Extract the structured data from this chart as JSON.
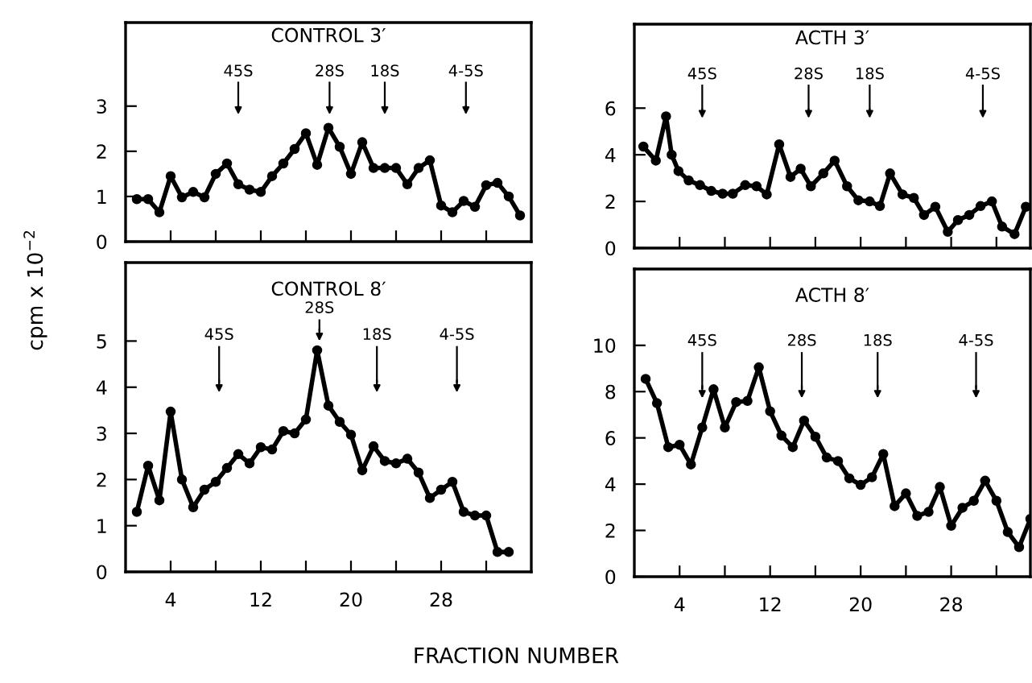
{
  "chart_data": [
    {
      "type": "line",
      "title": "CONTROL 3′",
      "ylabel": "cpm x 10$^{−2}$",
      "marker": "circle",
      "line_style": "solid",
      "tick_labels": "y",
      "xlim": [
        0,
        36
      ],
      "ylim": [
        0,
        4.85
      ],
      "xticks": [
        {
          "value": 4,
          "label": null
        },
        {
          "value": 8,
          "label": null
        },
        {
          "value": 12,
          "label": null
        },
        {
          "value": 16,
          "label": null
        },
        {
          "value": 20,
          "label": null
        },
        {
          "value": 24,
          "label": null
        },
        {
          "value": 28,
          "label": null
        },
        {
          "value": 32,
          "label": null
        }
      ],
      "yticks": [
        0,
        1,
        2,
        3
      ],
      "x": [
        1,
        2,
        3,
        4,
        5,
        6,
        7,
        8,
        9,
        10,
        11,
        12,
        13,
        14,
        15,
        16,
        17,
        18,
        19,
        20,
        21,
        22,
        23,
        24,
        25,
        26,
        27,
        28,
        29,
        30,
        31,
        32,
        33,
        34,
        35
      ],
      "series": [
        {
          "color": "#000000",
          "values": [
            0.94,
            0.94,
            0.65,
            1.45,
            0.98,
            1.1,
            0.98,
            1.5,
            1.73,
            1.27,
            1.15,
            1.1,
            1.45,
            1.73,
            2.05,
            2.4,
            1.7,
            2.52,
            2.1,
            1.5,
            2.2,
            1.63,
            1.63,
            1.63,
            1.27,
            1.63,
            1.8,
            0.8,
            0.65,
            0.9,
            0.77,
            1.25,
            1.3,
            1.0,
            0.58
          ]
        }
      ],
      "ref_lines": [
        {
          "axis": "x",
          "value": 10,
          "label": "45S"
        },
        {
          "axis": "x",
          "value": 18.1,
          "label": "28S"
        },
        {
          "axis": "x",
          "value": 23,
          "label": "18S"
        },
        {
          "axis": "x",
          "value": 30.2,
          "label": "4-5S"
        }
      ]
    },
    {
      "type": "line",
      "title": "ACTH 3′",
      "marker": "circle",
      "line_style": "solid",
      "tick_labels": "y",
      "xlim": [
        0,
        35
      ],
      "ylim": [
        0,
        9.6
      ],
      "xticks": [
        {
          "value": 4,
          "label": null
        },
        {
          "value": 8,
          "label": null
        },
        {
          "value": 12,
          "label": null
        },
        {
          "value": 16,
          "label": null
        },
        {
          "value": 20,
          "label": null
        },
        {
          "value": 24,
          "label": null
        },
        {
          "value": 28,
          "label": null
        },
        {
          "value": 32,
          "label": null
        }
      ],
      "yticks": [
        0,
        2,
        4,
        6
      ],
      "x": [
        0.8,
        1.9,
        2.8,
        3.3,
        3.9,
        4.8,
        5.8,
        6.8,
        7.8,
        8.7,
        9.8,
        10.8,
        11.7,
        12.8,
        13.8,
        14.7,
        15.6,
        16.7,
        17.7,
        18.8,
        19.8,
        20.8,
        21.7,
        22.6,
        23.7,
        24.7,
        25.6,
        26.6,
        27.7,
        28.6,
        29.6,
        30.6,
        31.6,
        32.5,
        33.6,
        34.6
      ],
      "series": [
        {
          "color": "#000000",
          "values": [
            4.35,
            3.75,
            5.65,
            4.0,
            3.3,
            2.9,
            2.7,
            2.45,
            2.33,
            2.33,
            2.7,
            2.65,
            2.3,
            4.45,
            3.05,
            3.4,
            2.65,
            3.2,
            3.75,
            2.65,
            2.05,
            2.0,
            1.8,
            3.2,
            2.3,
            2.15,
            1.42,
            1.77,
            0.7,
            1.2,
            1.42,
            1.8,
            2.0,
            0.92,
            0.6,
            1.77
          ]
        }
      ],
      "ref_lines": [
        {
          "axis": "x",
          "value": 6,
          "label": "45S"
        },
        {
          "axis": "x",
          "value": 15.4,
          "label": "28S"
        },
        {
          "axis": "x",
          "value": 20.8,
          "label": "18S"
        },
        {
          "axis": "x",
          "value": 30.8,
          "label": "4-5S"
        }
      ]
    },
    {
      "type": "line",
      "title": "CONTROL 8′",
      "xlabel": "FRACTION NUMBER",
      "marker": "circle",
      "line_style": "solid",
      "xlim": [
        0,
        36
      ],
      "ylim": [
        0,
        6.7
      ],
      "xticks": [
        4,
        {
          "value": 8,
          "label": null
        },
        12,
        {
          "value": 16,
          "label": null
        },
        20,
        {
          "value": 24,
          "label": null
        },
        28,
        {
          "value": 32,
          "label": null
        }
      ],
      "yticks": [
        0,
        1,
        2,
        3,
        4,
        5
      ],
      "x": [
        1,
        2,
        3,
        4,
        5,
        6,
        7,
        8,
        9,
        10,
        11,
        12,
        13,
        14,
        15,
        16,
        17,
        18,
        19,
        20,
        21,
        22,
        23,
        24,
        25,
        26,
        27,
        28,
        29,
        30,
        31,
        32,
        33,
        34
      ],
      "series": [
        {
          "color": "#000000",
          "values": [
            1.3,
            2.3,
            1.55,
            3.47,
            2.0,
            1.4,
            1.78,
            1.95,
            2.25,
            2.55,
            2.35,
            2.7,
            2.65,
            3.05,
            3.0,
            3.3,
            4.8,
            3.6,
            3.25,
            2.97,
            2.2,
            2.72,
            2.4,
            2.35,
            2.45,
            2.15,
            1.6,
            1.78,
            1.95,
            1.3,
            1.22,
            1.22,
            0.43,
            0.43
          ]
        }
      ],
      "ref_lines": [
        {
          "axis": "x",
          "value": 8.3,
          "label": "45S"
        },
        {
          "axis": "x",
          "value": 17.2,
          "label": "28S"
        },
        {
          "axis": "x",
          "value": 22.3,
          "label": "18S"
        },
        {
          "axis": "x",
          "value": 29.4,
          "label": "4-5S"
        }
      ]
    },
    {
      "type": "line",
      "title": "ACTH 8′",
      "marker": "circle",
      "line_style": "solid",
      "xlim": [
        0,
        35
      ],
      "ylim": [
        0,
        13.3
      ],
      "xticks": [
        4,
        {
          "value": 8,
          "label": null
        },
        12,
        {
          "value": 16,
          "label": null
        },
        20,
        {
          "value": 24,
          "label": null
        },
        28,
        {
          "value": 32,
          "label": null
        }
      ],
      "yticks": [
        0,
        2,
        4,
        6,
        8,
        10
      ],
      "x": [
        1,
        2,
        3,
        4,
        5,
        6,
        7,
        8,
        9,
        10,
        11,
        12,
        13,
        14,
        15,
        16,
        17,
        18,
        19,
        20,
        21,
        22,
        23,
        24,
        25,
        26,
        27,
        28,
        29,
        30,
        31,
        32,
        33,
        34,
        35
      ],
      "series": [
        {
          "color": "#000000",
          "values": [
            8.55,
            7.5,
            5.6,
            5.7,
            4.85,
            6.45,
            8.1,
            6.45,
            7.55,
            7.6,
            9.05,
            7.15,
            6.1,
            5.6,
            6.75,
            6.05,
            5.15,
            5.0,
            4.25,
            3.97,
            4.3,
            5.3,
            3.05,
            3.6,
            2.63,
            2.8,
            3.88,
            2.2,
            2.98,
            3.28,
            4.15,
            3.28,
            1.93,
            1.28,
            2.5
          ]
        }
      ],
      "ref_lines": [
        {
          "axis": "x",
          "value": 6,
          "label": "45S"
        },
        {
          "axis": "x",
          "value": 14.8,
          "label": "28S"
        },
        {
          "axis": "x",
          "value": 21.5,
          "label": "18S"
        },
        {
          "axis": "x",
          "value": 30.2,
          "label": "4-5S"
        }
      ]
    }
  ]
}
